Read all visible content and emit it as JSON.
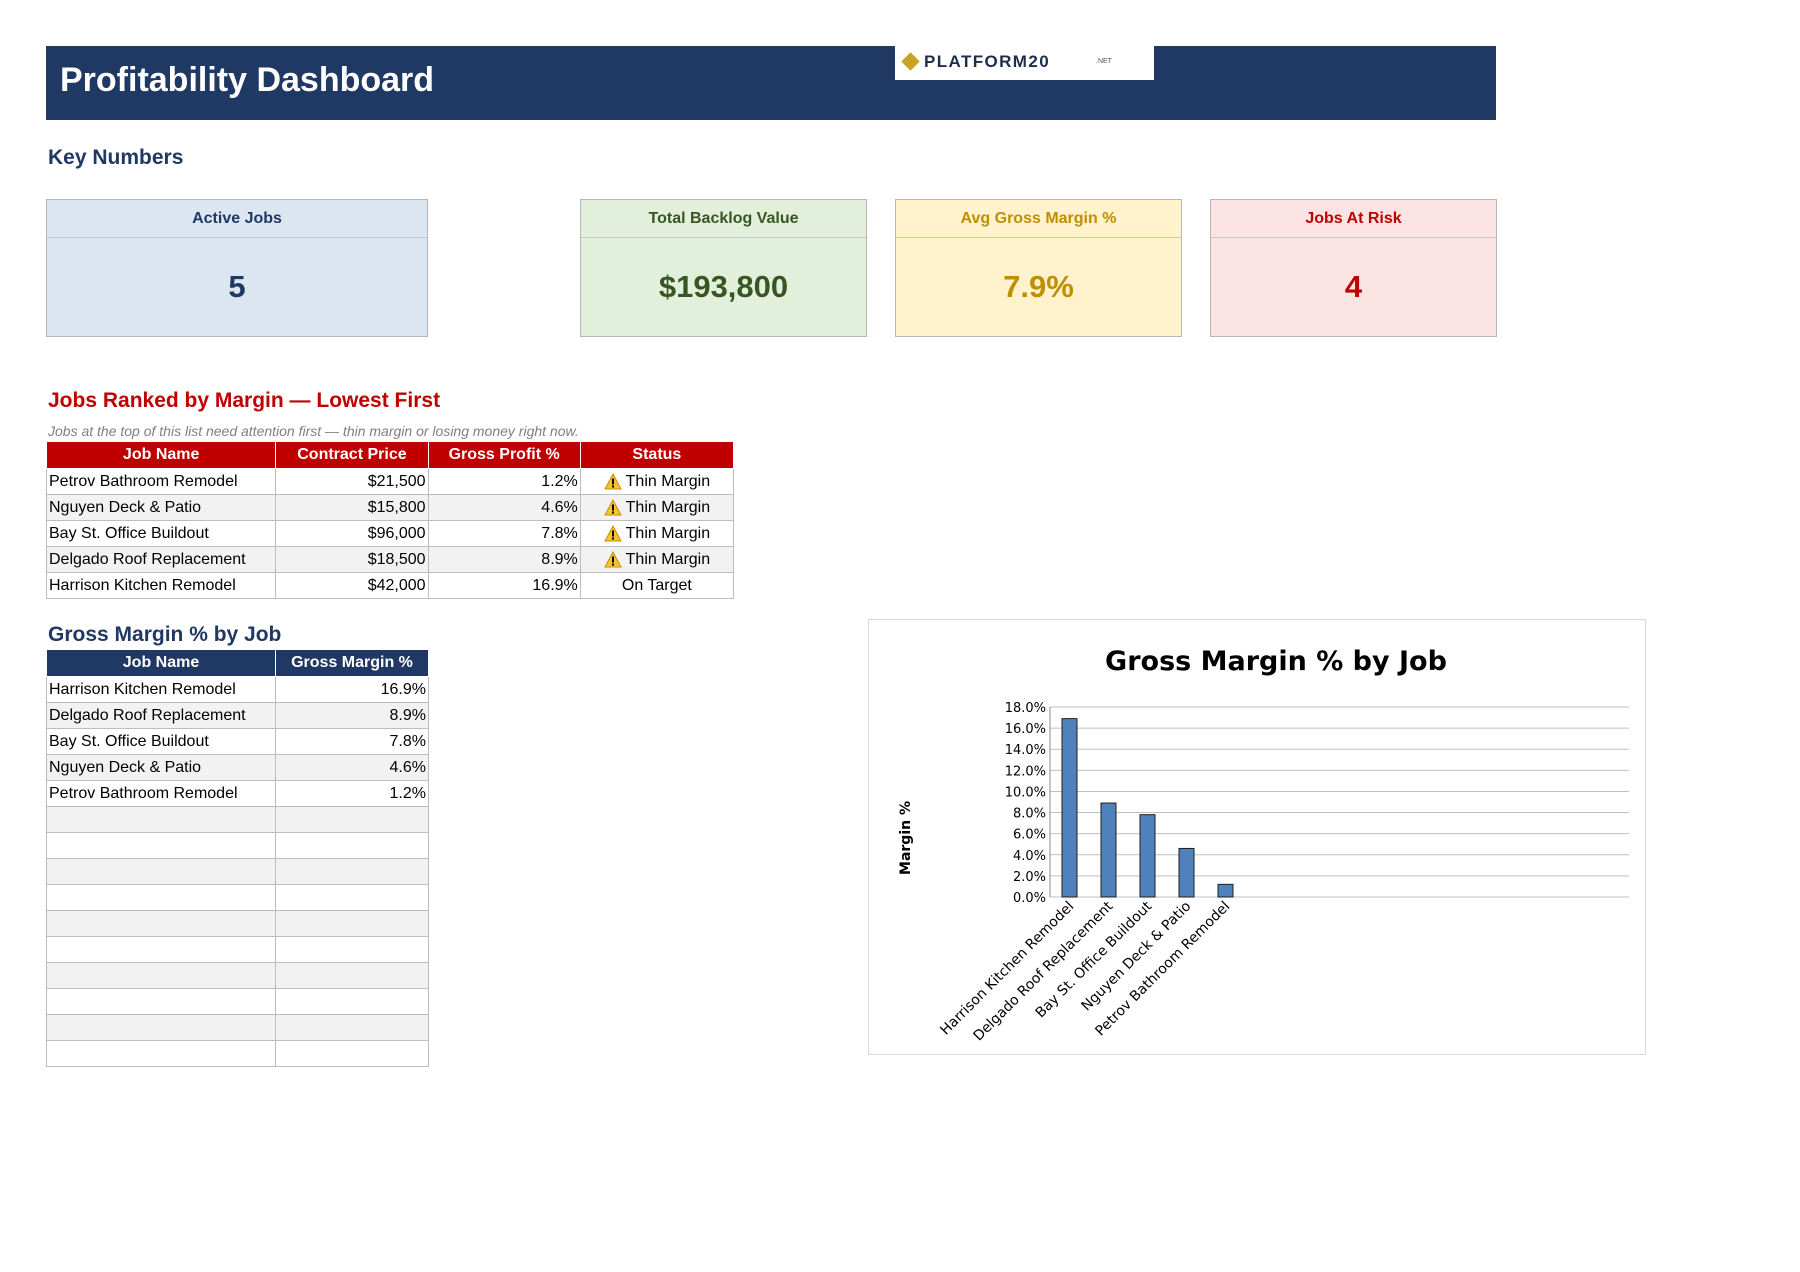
{
  "header": {
    "title": "Profitability Dashboard",
    "logo_text": "PLATFORM20",
    "logo_suffix": ".NET"
  },
  "key_numbers": {
    "section_title": "Key Numbers",
    "cards": [
      {
        "label": "Active Jobs",
        "value": "5",
        "header_color": "#1f3864",
        "bg": "#dce6f1"
      },
      {
        "label": "Total Backlog Value",
        "value": "$193,800",
        "header_color": "#375623",
        "bg": "#e2efda"
      },
      {
        "label": "Avg Gross Margin %",
        "value": "7.9%",
        "header_color": "#bf8f00",
        "bg": "#fff2cc"
      },
      {
        "label": "Jobs At Risk",
        "value": "4",
        "header_color": "#c00000",
        "bg": "#fce4e4"
      }
    ]
  },
  "ranked": {
    "title": "Jobs Ranked by Margin — Lowest First",
    "note": "Jobs at the top of this list need attention first — thin margin or losing money right now.",
    "columns": [
      "Job Name",
      "Contract Price",
      "Gross Profit %",
      "Status"
    ],
    "rows": [
      {
        "name": "Petrov Bathroom Remodel",
        "price": "$21,500",
        "gp": "1.2%",
        "status": "Thin Margin",
        "warn": true
      },
      {
        "name": "Nguyen Deck & Patio",
        "price": "$15,800",
        "gp": "4.6%",
        "status": "Thin Margin",
        "warn": true
      },
      {
        "name": "Bay St. Office Buildout",
        "price": "$96,000",
        "gp": "7.8%",
        "status": "Thin Margin",
        "warn": true
      },
      {
        "name": "Delgado Roof Replacement",
        "price": "$18,500",
        "gp": "8.9%",
        "status": "Thin Margin",
        "warn": true
      },
      {
        "name": "Harrison Kitchen Remodel",
        "price": "$42,000",
        "gp": "16.9%",
        "status": "On Target",
        "warn": false
      }
    ]
  },
  "gm_table": {
    "title": "Gross Margin % by Job",
    "columns": [
      "Job Name",
      "Gross Margin %"
    ],
    "rows": [
      {
        "name": "Harrison Kitchen Remodel",
        "gm": "16.9%"
      },
      {
        "name": "Delgado Roof Replacement",
        "gm": "8.9%"
      },
      {
        "name": "Bay St. Office Buildout",
        "gm": "7.8%"
      },
      {
        "name": "Nguyen Deck & Patio",
        "gm": "4.6%"
      },
      {
        "name": "Petrov Bathroom Remodel",
        "gm": "1.2%"
      }
    ],
    "empty_rows": 10
  },
  "colors": {
    "header": "#203864",
    "section_blue": "#1f3864",
    "section_red": "#c00000",
    "bar": "#4f81bd"
  },
  "chart_data": {
    "type": "bar",
    "title": "Gross Margin % by Job",
    "xlabel": "",
    "ylabel": "Margin %",
    "categories": [
      "Harrison Kitchen Remodel",
      "Delgado Roof Replacement",
      "Bay St. Office Buildout",
      "Nguyen Deck & Patio",
      "Petrov Bathroom Remodel"
    ],
    "values": [
      16.9,
      8.9,
      7.8,
      4.6,
      1.2
    ],
    "ylim": [
      0,
      18
    ],
    "yticks": [
      "0.0%",
      "2.0%",
      "4.0%",
      "6.0%",
      "8.0%",
      "10.0%",
      "12.0%",
      "14.0%",
      "16.0%",
      "18.0%"
    ],
    "grid": true,
    "legend": "none"
  }
}
